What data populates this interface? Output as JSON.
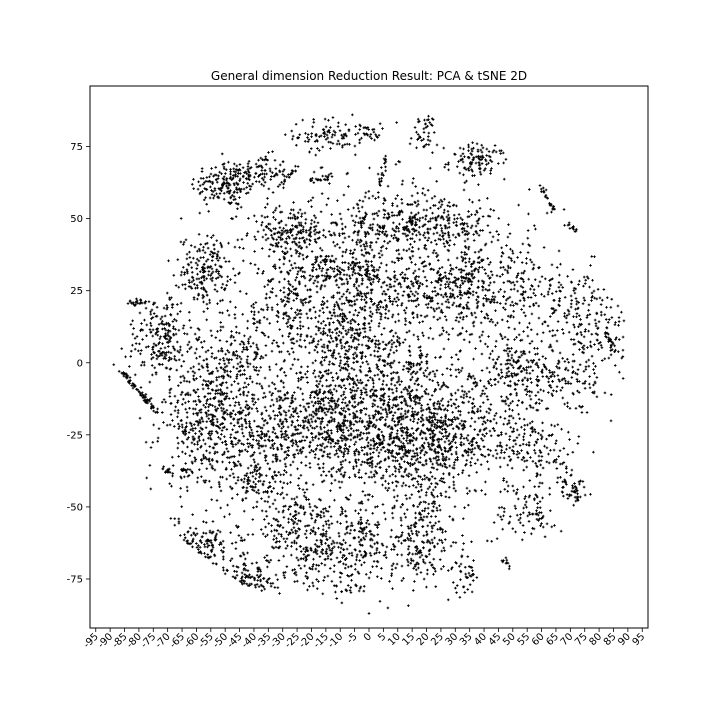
{
  "chart_data": {
    "type": "scatter",
    "title": "General dimension Reduction Result: PCA & tSNE 2D",
    "xlabel": "",
    "ylabel": "",
    "xlim": [
      -97,
      97
    ],
    "ylim": [
      -92,
      96
    ],
    "x_ticks": [
      -95,
      -90,
      -85,
      -80,
      -75,
      -70,
      -65,
      -60,
      -55,
      -50,
      -45,
      -40,
      -35,
      -30,
      -25,
      -20,
      -15,
      -10,
      -5,
      0,
      5,
      10,
      15,
      20,
      25,
      30,
      35,
      40,
      45,
      50,
      55,
      60,
      65,
      70,
      75,
      80,
      85,
      90,
      95
    ],
    "y_ticks": [
      -75,
      -50,
      -25,
      0,
      25,
      50,
      75
    ],
    "grid": false,
    "legend": "none",
    "marker": "+",
    "point_color": "#000000",
    "clusters": [
      {
        "cx": -50,
        "cy": 62,
        "sx": 6,
        "sy": 4,
        "n": 160
      },
      {
        "cx": -38,
        "cy": 66,
        "sx": 5,
        "sy": 3,
        "n": 90
      },
      {
        "cx": -14,
        "cy": 79,
        "sx": 6,
        "sy": 3,
        "n": 90
      },
      {
        "cx": 0,
        "cy": 80,
        "sx": 2,
        "sy": 1.5,
        "n": 25
      },
      {
        "cx": 19,
        "cy": 79,
        "sx": 2.5,
        "sy": 4,
        "n": 45
      },
      {
        "cx": 38,
        "cy": 70,
        "sx": 5,
        "sy": 3,
        "n": 110
      },
      {
        "cx": -57,
        "cy": 32,
        "sx": 4,
        "sy": 6,
        "n": 170
      },
      {
        "cx": -27,
        "cy": 45,
        "sx": 8,
        "sy": 5,
        "n": 230
      },
      {
        "cx": -27,
        "cy": 22,
        "sx": 5,
        "sy": 8,
        "n": 150
      },
      {
        "cx": -15,
        "cy": 32,
        "sx": 3,
        "sy": 3,
        "n": 70
      },
      {
        "cx": -3,
        "cy": 32,
        "sx": 4,
        "sy": 10,
        "n": 220
      },
      {
        "cx": 10,
        "cy": 48,
        "sx": 9,
        "sy": 6,
        "n": 230
      },
      {
        "cx": 28,
        "cy": 48,
        "sx": 8,
        "sy": 5,
        "n": 160
      },
      {
        "cx": 20,
        "cy": 26,
        "sx": 9,
        "sy": 6,
        "n": 240
      },
      {
        "cx": 35,
        "cy": 25,
        "sx": 6,
        "sy": 9,
        "n": 190
      },
      {
        "cx": -72,
        "cy": 8,
        "sx": 6,
        "sy": 8,
        "n": 220
      },
      {
        "cx": -45,
        "cy": 2,
        "sx": 8,
        "sy": 8,
        "n": 180
      },
      {
        "cx": -10,
        "cy": 10,
        "sx": 8,
        "sy": 8,
        "n": 200
      },
      {
        "cx": 5,
        "cy": 0,
        "sx": 10,
        "sy": 10,
        "n": 260
      },
      {
        "cx": 50,
        "cy": 28,
        "sx": 6,
        "sy": 7,
        "n": 110
      },
      {
        "cx": 68,
        "cy": 22,
        "sx": 8,
        "sy": 6,
        "n": 130
      },
      {
        "cx": 78,
        "cy": 8,
        "sx": 6,
        "sy": 8,
        "n": 110
      },
      {
        "cx": 50,
        "cy": -2,
        "sx": 6,
        "sy": 7,
        "n": 150
      },
      {
        "cx": 65,
        "cy": -5,
        "sx": 7,
        "sy": 6,
        "n": 140
      },
      {
        "cx": -55,
        "cy": -22,
        "sx": 8,
        "sy": 11,
        "n": 480
      },
      {
        "cx": -35,
        "cy": -25,
        "sx": 6,
        "sy": 9,
        "n": 200
      },
      {
        "cx": -15,
        "cy": -20,
        "sx": 9,
        "sy": 11,
        "n": 540
      },
      {
        "cx": 8,
        "cy": -25,
        "sx": 10,
        "sy": 11,
        "n": 540
      },
      {
        "cx": 25,
        "cy": -25,
        "sx": 8,
        "sy": 11,
        "n": 420
      },
      {
        "cx": 45,
        "cy": -25,
        "sx": 6,
        "sy": 8,
        "n": 120
      },
      {
        "cx": 60,
        "cy": -30,
        "sx": 6,
        "sy": 6,
        "n": 100
      },
      {
        "cx": -40,
        "cy": -42,
        "sx": 4,
        "sy": 3,
        "n": 60
      },
      {
        "cx": -25,
        "cy": -60,
        "sx": 7,
        "sy": 9,
        "n": 230
      },
      {
        "cx": -10,
        "cy": -65,
        "sx": 6,
        "sy": 9,
        "n": 200
      },
      {
        "cx": 0,
        "cy": -63,
        "sx": 3,
        "sy": 5,
        "n": 60
      },
      {
        "cx": 18,
        "cy": -62,
        "sx": 6,
        "sy": 9,
        "n": 220
      },
      {
        "cx": 55,
        "cy": -50,
        "sx": 5,
        "sy": 5,
        "n": 90
      },
      {
        "cx": 70,
        "cy": -42,
        "sx": 3,
        "sy": 4,
        "n": 40
      },
      {
        "cx": -58,
        "cy": -63,
        "sx": 7,
        "sy": 4,
        "n": 170
      },
      {
        "cx": -42,
        "cy": -75,
        "sx": 5,
        "sy": 3,
        "n": 110
      },
      {
        "cx": 34,
        "cy": -73,
        "sx": 2,
        "sy": 4,
        "n": 40
      },
      {
        "cx": 0,
        "cy": 0,
        "sx": 40,
        "sy": 38,
        "n": 700
      }
    ],
    "lines": [
      {
        "x0": -86,
        "y0": -3,
        "x1": -74,
        "y1": -17,
        "n": 70
      },
      {
        "x0": -84,
        "y0": 21,
        "x1": -78,
        "y1": 21,
        "n": 18
      },
      {
        "x0": -30,
        "y0": 62,
        "x1": -25,
        "y1": 68,
        "n": 20
      },
      {
        "x0": -20,
        "y0": 63,
        "x1": -12,
        "y1": 65,
        "n": 25
      },
      {
        "x0": 3,
        "y0": 60,
        "x1": 6,
        "y1": 72,
        "n": 20
      },
      {
        "x0": 60,
        "y0": 61,
        "x1": 64,
        "y1": 53,
        "n": 25
      },
      {
        "x0": 68,
        "y0": 49,
        "x1": 72,
        "y1": 46,
        "n": 12
      },
      {
        "x0": 82,
        "y0": 10,
        "x1": 86,
        "y1": 4,
        "n": 22
      },
      {
        "x0": -72,
        "y0": -37,
        "x1": -69,
        "y1": -38,
        "n": 14
      },
      {
        "x0": -66,
        "y0": -37,
        "x1": -62,
        "y1": -38,
        "n": 12
      },
      {
        "x0": 47,
        "y0": -68,
        "x1": 49,
        "y1": -71,
        "n": 10
      },
      {
        "x0": 71,
        "y0": -43,
        "x1": 73,
        "y1": -48,
        "n": 14
      }
    ]
  }
}
